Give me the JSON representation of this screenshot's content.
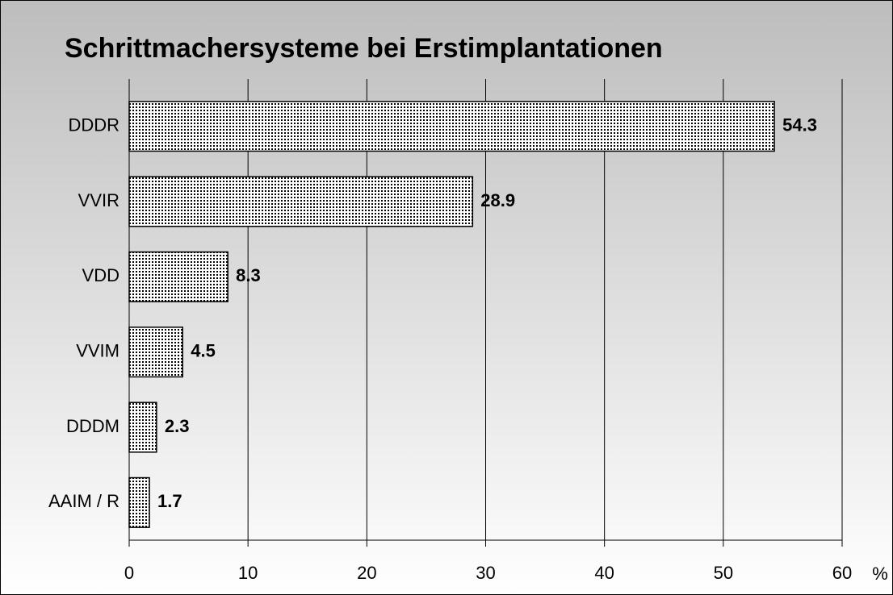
{
  "chart_data": {
    "type": "bar",
    "orientation": "horizontal",
    "title": "Schrittmachersysteme bei Erstimplantationen",
    "categories": [
      "DDDR",
      "VVIR",
      "VDD",
      "VVIM",
      "DDDM",
      "AAIM / R"
    ],
    "values": [
      54.3,
      28.9,
      8.3,
      4.5,
      2.3,
      1.7
    ],
    "color": "#000000",
    "x_label": "%",
    "xlim": [
      0,
      60
    ],
    "xticks": [
      0,
      10,
      20,
      30,
      40,
      50,
      60
    ],
    "grid": true
  }
}
